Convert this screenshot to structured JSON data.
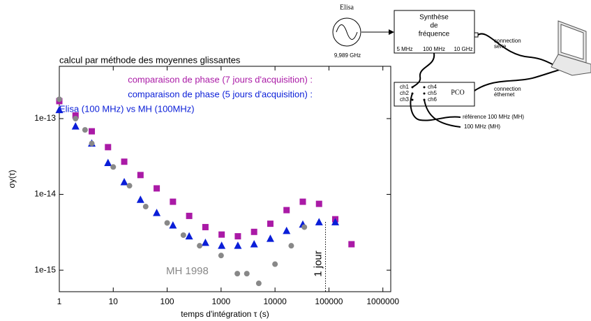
{
  "chart_data": {
    "type": "scatter",
    "annotation_top": "calcul par méthode des moyennes glissantes",
    "xlabel": "temps d'intégration τ (s)",
    "ylabel": "σy(τ)",
    "xlog": true,
    "ylog": true,
    "xlim": [
      1,
      1400000
    ],
    "ylim": [
      5.2e-16,
      4.9e-13
    ],
    "xticks": [
      1,
      10,
      100,
      1000,
      10000,
      100000,
      1000000
    ],
    "yticks": [
      {
        "value": 1e-15,
        "label": "1e-15"
      },
      {
        "value": 1e-14,
        "label": "1e-14"
      },
      {
        "value": 1e-13,
        "label": "1e-13"
      }
    ],
    "series": [
      {
        "name": "comparaison de phase (7 jours d'acquisition) :",
        "color": "#aa1aa6",
        "marker": "square",
        "x": [
          1,
          2,
          4,
          8,
          16,
          32,
          64,
          128,
          256,
          512,
          1024,
          2048,
          4096,
          8192,
          16384,
          32768,
          65536,
          131072,
          262144
        ],
        "values": [
          1.7e-13,
          1.1e-13,
          6.8e-14,
          4.2e-14,
          2.7e-14,
          1.8e-14,
          1.2e-14,
          8e-15,
          5.2e-15,
          3.7e-15,
          2.95e-15,
          2.8e-15,
          3.2e-15,
          4.1e-15,
          6.2e-15,
          8e-15,
          7.5e-15,
          4.7e-15,
          2.2e-15
        ]
      },
      {
        "name": "comparaison de phase (5 jours d'acquisition) :",
        "color": "#0a1ed8",
        "marker": "triangle",
        "x": [
          1,
          2,
          4,
          8,
          16,
          32,
          64,
          128,
          256,
          512,
          1024,
          2048,
          4096,
          8192,
          16384,
          32768,
          65536,
          131072
        ],
        "values": [
          1.3e-13,
          7.9e-14,
          4.7e-14,
          2.6e-14,
          1.45e-14,
          8.5e-15,
          5.7e-15,
          3.9e-15,
          2.8e-15,
          2.3e-15,
          2.1e-15,
          2.1e-15,
          2.2e-15,
          2.6e-15,
          3.3e-15,
          4e-15,
          4.3e-15,
          4.3e-15
        ]
      },
      {
        "name": "MH 1998",
        "color": "#888888",
        "marker": "circle",
        "x": [
          1,
          2,
          3,
          4,
          10,
          20,
          40,
          100,
          200,
          400,
          1000,
          2000,
          3000,
          5000,
          10000,
          20000,
          35000
        ],
        "values": [
          1.8e-13,
          1e-13,
          7.1e-14,
          4.7e-14,
          2.3e-14,
          1.3e-14,
          6.9e-15,
          4.2e-15,
          2.9e-15,
          2.1e-15,
          1.56e-15,
          9e-16,
          9e-16,
          6.7e-16,
          1.2e-15,
          2.1e-15,
          3.7e-15
        ]
      }
    ],
    "legend_extra": "Elisa (100 MHz) vs MH (100MHz)",
    "day_marker": {
      "text": "1 jour",
      "x": 86400
    }
  },
  "diagram": {
    "source": {
      "label": "Elisa",
      "frequency": "9,989 GHz"
    },
    "synth": {
      "lines": [
        "Synthèse",
        "de",
        "fréquence"
      ],
      "outputs": [
        "5 MHz",
        "100 MHz",
        "10 GHz"
      ]
    },
    "pco": {
      "label": "PCO",
      "channels": [
        "ch1",
        "ch2",
        "ch3",
        "ch4",
        "ch5",
        "ch6"
      ]
    },
    "serial": [
      "connection",
      "série"
    ],
    "ethernet": [
      "connection",
      "éthernet"
    ],
    "inputs": [
      "référence 100 MHz (MH)",
      "100 MHz (MH)"
    ]
  }
}
